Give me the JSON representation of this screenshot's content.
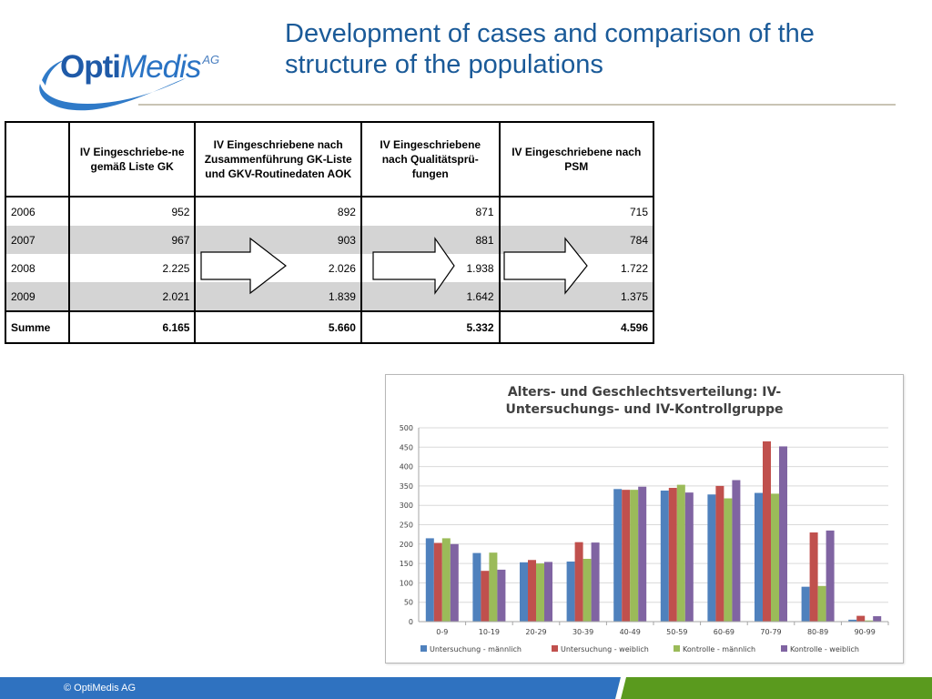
{
  "logo": {
    "opti": "Opti",
    "medis": "Medis",
    "ag": "AG"
  },
  "title": "Development of cases and comparison of the structure of the populations",
  "table": {
    "headers": [
      "",
      "IV Eingeschriebe-ne gemäß Liste GK",
      "IV Eingeschriebene nach Zusammenführung GK-Liste und GKV-Routinedaten AOK",
      "IV Eingeschriebene nach Qualitätsprü-fungen",
      "IV Eingeschriebene nach PSM"
    ],
    "rows": [
      {
        "label": "2006",
        "values": [
          "952",
          "892",
          "871",
          "715"
        ]
      },
      {
        "label": "2007",
        "values": [
          "967",
          "903",
          "881",
          "784"
        ]
      },
      {
        "label": "2008",
        "values": [
          "2.225",
          "2.026",
          "1.938",
          "1.722"
        ]
      },
      {
        "label": "2009",
        "values": [
          "2.021",
          "1.839",
          "1.642",
          "1.375"
        ]
      },
      {
        "label": "Summe",
        "values": [
          "6.165",
          "5.660",
          "5.332",
          "4.596"
        ]
      }
    ]
  },
  "chart_data": {
    "type": "bar",
    "title": "Alters- und Geschlechtsverteilung: IV-Untersuchungs- und IV-Kontrollgruppe",
    "title_lines": [
      "Alters- und Geschlechtsverteilung: IV-",
      "Untersuchungs- und IV-Kontrollgruppe"
    ],
    "categories": [
      "0-9",
      "10-19",
      "20-29",
      "30-39",
      "40-49",
      "50-59",
      "60-69",
      "70-79",
      "80-89",
      "90-99"
    ],
    "series": [
      {
        "name": "Untersuchung - männlich",
        "color": "#4f81bd",
        "values": [
          215,
          177,
          153,
          155,
          342,
          338,
          328,
          332,
          90,
          5
        ]
      },
      {
        "name": "Untersuchung - weiblich",
        "color": "#c0504d",
        "values": [
          203,
          131,
          159,
          205,
          340,
          345,
          350,
          465,
          230,
          15
        ]
      },
      {
        "name": "Kontrolle - männlich",
        "color": "#9bbb59",
        "values": [
          215,
          178,
          150,
          162,
          340,
          353,
          318,
          330,
          92,
          3
        ]
      },
      {
        "name": "Kontrolle - weiblich",
        "color": "#8064a2",
        "values": [
          200,
          134,
          154,
          204,
          348,
          333,
          365,
          452,
          235,
          14
        ]
      }
    ],
    "yticks": [
      "0",
      "50",
      "100",
      "150",
      "200",
      "250",
      "300",
      "350",
      "400",
      "450",
      "500"
    ],
    "ylim": [
      0,
      500
    ],
    "grid": true,
    "legend": "bottom",
    "xlabel": "",
    "ylabel": ""
  },
  "footer": {
    "text": "© OptiMedis AG"
  },
  "colors": {
    "title": "#1a5a98",
    "footer_blue": "#2f72c0",
    "footer_green": "#5a9a1e"
  }
}
